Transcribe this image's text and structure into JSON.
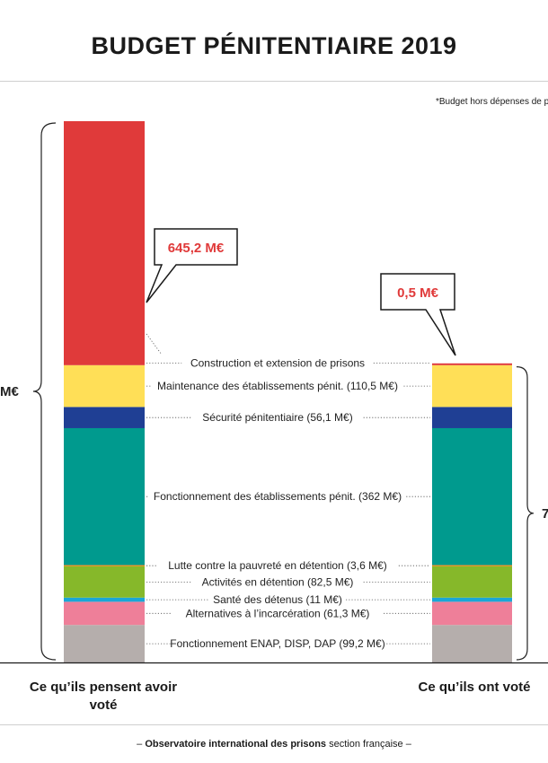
{
  "title": "BUDGET PÉNITENTIAIRE 2019",
  "note": "*Budget hors dépenses de pers",
  "footer": {
    "prefix": "– ",
    "org_bold": "Observatoire international des prisons",
    "org_rest": " section française",
    "suffix": " –"
  },
  "chart_data": {
    "type": "bar",
    "stacked": true,
    "unit": "M€",
    "categories": [
      "Ce qu’ils pensent avoir voté",
      "Ce qu’ils ont voté"
    ],
    "brace_labels": [
      "M€",
      "7"
    ],
    "segments": [
      {
        "label": "Fonctionnement ENAP, DISP, DAP (99,2 M€)",
        "color": "#b5aeac",
        "values": [
          99.2,
          99.2
        ]
      },
      {
        "label": "Alternatives à l’incarcération (61,3 M€)",
        "color": "#ee7f99",
        "values": [
          61.3,
          61.3
        ]
      },
      {
        "label": "Santé des détenus (11 M€)",
        "color": "#1aa6d6",
        "values": [
          11,
          11
        ]
      },
      {
        "label": "Activités en détention (82,5 M€)",
        "color": "#86b82a",
        "values": [
          82.5,
          82.5
        ]
      },
      {
        "label": "Lutte contre la pauvreté en détention (3,6 M€)",
        "color": "#e8952a",
        "values": [
          3.6,
          3.6
        ]
      },
      {
        "label": "Fonctionnement des établissements pénit. (362 M€)",
        "color": "#009a8e",
        "values": [
          362,
          362
        ]
      },
      {
        "label": "Sécurité pénitentiaire (56,1 M€)",
        "color": "#1f3f94",
        "values": [
          56.1,
          56.1
        ]
      },
      {
        "label": "Maintenance des établissements pénit. (110,5 M€)",
        "color": "#ffdf57",
        "values": [
          110.5,
          110.5
        ]
      },
      {
        "label": "Construction et extension de prisons",
        "color": "#e03a3a",
        "values": [
          645.2,
          0.5
        ]
      }
    ],
    "callouts": [
      {
        "text": "645,2 M€",
        "bar": 0,
        "color": "#e03a3a"
      },
      {
        "text": "0,5 M€",
        "bar": 1,
        "color": "#e03a3a"
      }
    ]
  }
}
